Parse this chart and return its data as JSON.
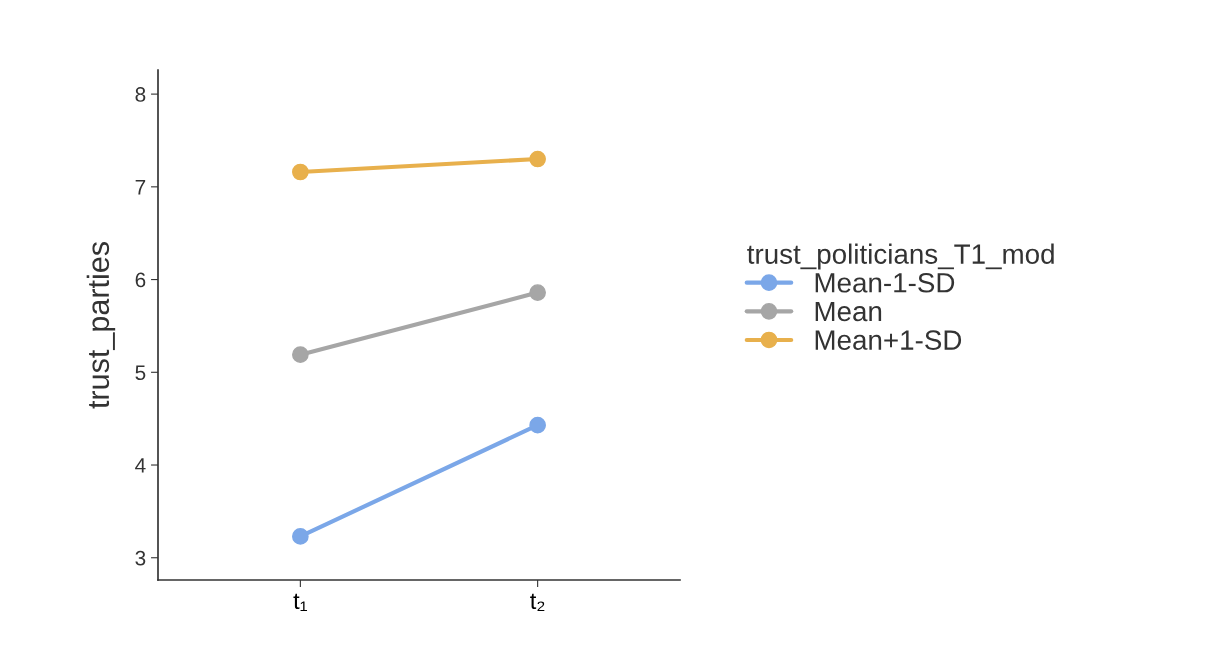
{
  "chart_data": {
    "type": "line",
    "categories": [
      "t₁",
      "t₂"
    ],
    "ylabel": "trust_parties",
    "legend_title": "trust_politicians_T1_mod",
    "series": [
      {
        "name": "Mean-1-SD",
        "color": "#7ba7e8",
        "values": [
          3.23,
          4.43
        ]
      },
      {
        "name": "Mean",
        "color": "#a6a6a6",
        "values": [
          5.19,
          5.86
        ]
      },
      {
        "name": "Mean+1-SD",
        "color": "#e8b04c",
        "values": [
          7.16,
          7.3
        ]
      }
    ],
    "ylim": [
      2.76,
      8.26
    ],
    "yticks": [
      3,
      4,
      5,
      6,
      7,
      8
    ],
    "marker": "circle",
    "line_style": "solid",
    "legend": "right",
    "grid": false
  }
}
